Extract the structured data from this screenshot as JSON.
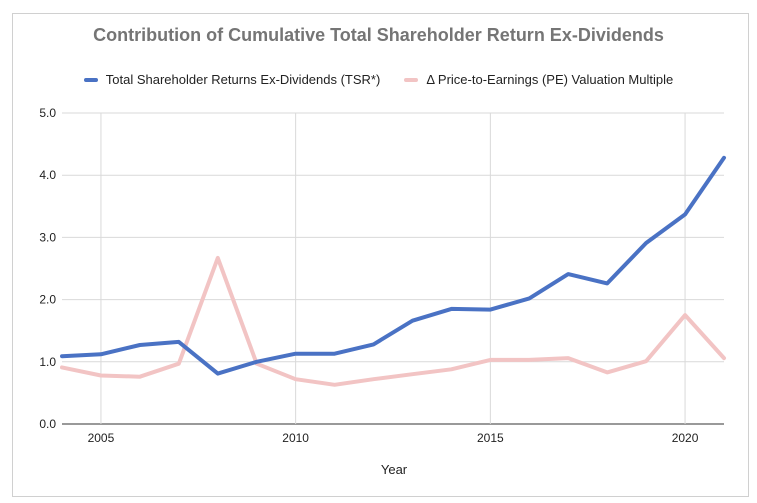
{
  "chart_data": {
    "type": "line",
    "title": "Contribution of Cumulative Total Shareholder Return Ex-Dividends",
    "xlabel": "Year",
    "ylabel": "",
    "xlim": [
      2004,
      2021
    ],
    "ylim": [
      0,
      5
    ],
    "x_ticks": [
      "2005",
      "2010",
      "2015",
      "2020"
    ],
    "y_ticks": [
      "0.0",
      "1.0",
      "2.0",
      "3.0",
      "4.0",
      "5.0"
    ],
    "grid": true,
    "legend_position": "top",
    "x": [
      2004,
      2005,
      2006,
      2007,
      2008,
      2009,
      2010,
      2011,
      2012,
      2013,
      2014,
      2015,
      2016,
      2017,
      2018,
      2019,
      2020,
      2021
    ],
    "series": [
      {
        "name": "Total Shareholder Returns Ex-Dividends (TSR*)",
        "color": "#4a72c4",
        "values": [
          1.09,
          1.12,
          1.27,
          1.32,
          0.81,
          1.0,
          1.13,
          1.13,
          1.28,
          1.66,
          1.85,
          1.84,
          2.02,
          2.41,
          2.26,
          2.91,
          3.37,
          4.28
        ]
      },
      {
        "name": "Δ Price-to-Earnings (PE) Valuation Multiple",
        "color": "#f2c4c4",
        "values": [
          0.91,
          0.78,
          0.76,
          0.97,
          2.67,
          0.97,
          0.72,
          0.63,
          0.72,
          0.8,
          0.88,
          1.03,
          1.03,
          1.06,
          0.83,
          1.01,
          1.75,
          1.06
        ]
      }
    ]
  }
}
